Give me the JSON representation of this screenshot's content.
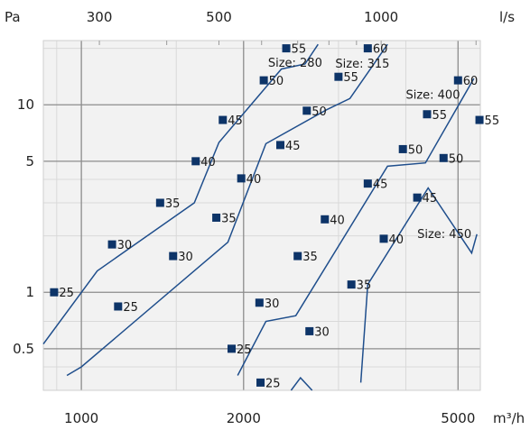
{
  "chart_data": {
    "type": "line",
    "x_scale": "log",
    "y_scale": "log",
    "xlabel": "m³/h",
    "ylabel": "Pa",
    "top_axis_label": "l/s",
    "xlim": [
      850,
      5500
    ],
    "ylim": [
      0.3,
      22
    ],
    "x_ticks": [
      1000,
      2000,
      5000
    ],
    "x_tick_labels": [
      "1000",
      "2000",
      "5000"
    ],
    "y_ticks": [
      0.5,
      1,
      5,
      10
    ],
    "y_tick_labels": [
      "0.5",
      "1",
      "5",
      "10"
    ],
    "top_ticks": [
      300,
      500,
      1000
    ],
    "top_tick_labels": [
      "300",
      "500",
      "1000"
    ],
    "grid": true,
    "colors": {
      "line": "#1f4e8c",
      "marker": "#0d3468",
      "grid_major": "#8c8c8c",
      "grid_minor": "#d9d9d9",
      "plot_bg": "#f2f2f2"
    },
    "series": [
      {
        "name": "Size: 280",
        "line": [
          [
            850,
            0.53
          ],
          [
            1070,
            1.3
          ],
          [
            1620,
            3.0
          ],
          [
            1800,
            6.3
          ],
          [
            2350,
            15.5
          ],
          [
            2600,
            16.5
          ],
          [
            2750,
            21.0
          ]
        ],
        "points": [
          [
            890,
            1.0
          ],
          [
            1170,
            0.84
          ],
          [
            1140,
            1.8
          ],
          [
            1480,
            1.56
          ],
          [
            1400,
            3.0
          ],
          [
            1780,
            2.5
          ],
          [
            1630,
            5.0
          ],
          [
            1980,
            4.05
          ],
          [
            1830,
            8.3
          ],
          [
            2180,
            13.5
          ],
          [
            2400,
            20.0
          ]
        ],
        "point_labels": [
          "25",
          "25",
          "30",
          "30",
          "35",
          "35",
          "40",
          "40",
          "45",
          "50",
          "55"
        ]
      },
      {
        "name": "Size: 315",
        "line": [
          [
            940,
            0.36
          ],
          [
            1000,
            0.4
          ],
          [
            1870,
            1.85
          ],
          [
            2200,
            6.2
          ],
          [
            2850,
            9.4
          ],
          [
            3150,
            10.8
          ],
          [
            3700,
            21.0
          ]
        ],
        "points": [
          [
            1900,
            0.5
          ],
          [
            2140,
            0.88
          ],
          [
            2520,
            1.56
          ],
          [
            2340,
            6.1
          ],
          [
            2620,
            9.3
          ],
          [
            2650,
            0.62
          ],
          [
            2830,
            2.45
          ],
          [
            3000,
            14.1
          ],
          [
            3170,
            1.1
          ],
          [
            3400,
            3.8
          ],
          [
            3400,
            20.0
          ]
        ],
        "point_labels": [
          "25",
          "30",
          "35",
          "45",
          "50",
          "30",
          "40",
          "55",
          "35",
          "45",
          "60"
        ]
      },
      {
        "name": "Size: 400",
        "line": [
          [
            1950,
            0.36
          ],
          [
            2200,
            0.7
          ],
          [
            2500,
            0.75
          ],
          [
            3700,
            4.7
          ],
          [
            4350,
            4.9
          ],
          [
            5350,
            13.8
          ]
        ],
        "points": [
          [
            2150,
            0.33
          ],
          [
            3640,
            1.93
          ],
          [
            3950,
            5.8
          ],
          [
            4200,
            3.2
          ],
          [
            4380,
            8.9
          ],
          [
            4700,
            5.2
          ],
          [
            5000,
            13.5
          ],
          [
            5480,
            8.3
          ]
        ],
        "point_labels": [
          "25",
          "40",
          "50",
          "45",
          "55",
          "50",
          "60",
          "55"
        ]
      },
      {
        "name": "Size: 450",
        "line": [
          [
            3300,
            0.33
          ],
          [
            3400,
            1.1
          ],
          [
            4400,
            3.6
          ],
          [
            5300,
            1.62
          ],
          [
            5420,
            2.04
          ]
        ],
        "points": [],
        "point_labels": []
      },
      {
        "name": "",
        "line": [
          [
            2450,
            0.3
          ],
          [
            2550,
            0.35
          ],
          [
            2680,
            0.3
          ]
        ],
        "points": [],
        "point_labels": []
      }
    ],
    "series_labels": [
      {
        "text": "Size: 280",
        "x": 2220,
        "y": 16.0
      },
      {
        "text": "Size: 315",
        "x": 2960,
        "y": 15.8
      },
      {
        "text": "Size: 400",
        "x": 4000,
        "y": 10.8
      },
      {
        "text": "Size: 450",
        "x": 4200,
        "y": 1.95
      }
    ]
  }
}
